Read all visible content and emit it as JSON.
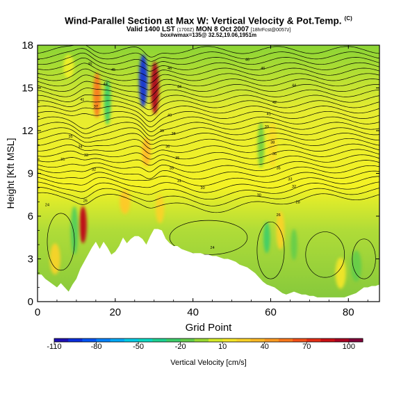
{
  "header": {
    "title": "Wind-Parallel Section at Max W: Vertical Velocity & Pot.Temp.",
    "title_mark": "(C)",
    "valid_main": "Valid 1400 LST",
    "valid_small1": "(1700Z)",
    "valid_mid": "MON 8 Oct 2007",
    "valid_small2": "[18hrFcst@0057z]",
    "subtitle2": "box#wmax=135@ 32.52,19.06,1951m"
  },
  "chart_data": {
    "type": "heatmap",
    "title": "Wind-Parallel Section at Max W: Vertical Velocity & Pot.Temp.",
    "xlabel": "Grid Point",
    "ylabel": "Height [Kft MSL]",
    "xlim": [
      0,
      88
    ],
    "ylim": [
      0,
      18
    ],
    "xticks": [
      0,
      20,
      40,
      60,
      80
    ],
    "yticks": [
      0,
      3,
      6,
      9,
      12,
      15,
      18
    ],
    "colorbar": {
      "label": "Vertical Velocity [cm/s]",
      "ticks": [
        -110,
        -80,
        -50,
        -20,
        10,
        40,
        70,
        100
      ],
      "range": [
        -110,
        110
      ]
    },
    "terrain": [
      [
        0,
        1.9
      ],
      [
        1,
        1.9
      ],
      [
        2,
        1.6
      ],
      [
        3,
        1.4
      ],
      [
        4,
        1.2
      ],
      [
        5,
        1.0
      ],
      [
        6,
        1.3
      ],
      [
        7,
        1.0
      ],
      [
        8,
        0.7
      ],
      [
        9,
        1.2
      ],
      [
        10,
        1.6
      ],
      [
        11,
        2.3
      ],
      [
        12,
        2.8
      ],
      [
        13,
        3.3
      ],
      [
        14,
        3.8
      ],
      [
        15,
        4.2
      ],
      [
        16,
        3.7
      ],
      [
        17,
        4.2
      ],
      [
        18,
        3.8
      ],
      [
        19,
        3.3
      ],
      [
        20,
        3.5
      ],
      [
        21,
        3.9
      ],
      [
        22,
        4.5
      ],
      [
        23,
        4.1
      ],
      [
        24,
        4.4
      ],
      [
        25,
        4.6
      ],
      [
        26,
        4.6
      ],
      [
        27,
        4.4
      ],
      [
        28,
        4.0
      ],
      [
        29,
        4.6
      ],
      [
        30,
        5.1
      ],
      [
        31,
        5.1
      ],
      [
        32,
        5.0
      ],
      [
        33,
        4.4
      ],
      [
        34,
        4.1
      ],
      [
        35,
        3.9
      ],
      [
        36,
        3.9
      ],
      [
        37,
        3.7
      ],
      [
        38,
        3.6
      ],
      [
        39,
        3.5
      ],
      [
        40,
        3.4
      ],
      [
        41,
        3.4
      ],
      [
        42,
        3.4
      ],
      [
        43,
        3.3
      ],
      [
        44,
        3.3
      ],
      [
        45,
        3.2
      ],
      [
        46,
        3.2
      ],
      [
        47,
        3.1
      ],
      [
        48,
        3.0
      ],
      [
        49,
        3.0
      ],
      [
        50,
        2.9
      ],
      [
        51,
        2.8
      ],
      [
        52,
        2.6
      ],
      [
        53,
        2.5
      ],
      [
        54,
        2.4
      ],
      [
        55,
        2.2
      ],
      [
        56,
        2.0
      ],
      [
        57,
        1.7
      ],
      [
        58,
        1.4
      ],
      [
        59,
        1.2
      ],
      [
        60,
        1.1
      ],
      [
        61,
        1.0
      ],
      [
        62,
        0.8
      ],
      [
        63,
        0.6
      ],
      [
        64,
        0.5
      ],
      [
        65,
        0.6
      ],
      [
        66,
        0.7
      ],
      [
        67,
        0.6
      ],
      [
        68,
        0.5
      ],
      [
        69,
        0.5
      ],
      [
        70,
        0.4
      ],
      [
        71,
        0.4
      ],
      [
        72,
        0.3
      ],
      [
        73,
        0.3
      ],
      [
        74,
        0.3
      ],
      [
        75,
        0.3
      ],
      [
        76,
        0.3
      ],
      [
        77,
        0.3
      ],
      [
        78,
        0.3
      ],
      [
        79,
        0.3
      ],
      [
        80,
        0.4
      ],
      [
        81,
        0.5
      ],
      [
        82,
        0.6
      ],
      [
        83,
        0.8
      ],
      [
        84,
        1.0
      ],
      [
        85,
        1.0
      ],
      [
        86,
        1.1
      ],
      [
        87,
        1.1
      ],
      [
        88,
        1.2
      ]
    ],
    "features": [
      {
        "name": "updraft-low-left",
        "x": 11.7,
        "y": 5.4,
        "width": 1.2,
        "height": 2.4,
        "value": 90
      },
      {
        "name": "downdraft-upper",
        "x": 27.2,
        "y": 15.5,
        "width": 1.5,
        "height": 3.5,
        "value": -95
      },
      {
        "name": "updraft-upper-right",
        "x": 30.2,
        "y": 15.0,
        "width": 1.4,
        "height": 3.5,
        "value": 95
      },
      {
        "name": "updraft-upper-left",
        "x": 15.3,
        "y": 14.5,
        "width": 1.2,
        "height": 3.0,
        "value": 55
      },
      {
        "name": "downdraft-upper-left",
        "x": 18.0,
        "y": 14.0,
        "width": 1.0,
        "height": 3.0,
        "value": -25
      },
      {
        "name": "updraft-mid",
        "x": 28.0,
        "y": 10.5,
        "width": 1.5,
        "height": 1.8,
        "value": 35
      },
      {
        "name": "downdraft-left-band",
        "x": 9.5,
        "y": 5.0,
        "width": 1.2,
        "height": 3.2,
        "value": -20
      },
      {
        "name": "updraft-left-low",
        "x": 4.5,
        "y": 3.0,
        "width": 2.0,
        "height": 2.0,
        "value": 25
      },
      {
        "name": "updraft-central-low",
        "x": 22.5,
        "y": 7.0,
        "width": 2.0,
        "height": 1.5,
        "value": 30
      },
      {
        "name": "updraft-central-low2",
        "x": 31.5,
        "y": 6.5,
        "width": 1.5,
        "height": 1.8,
        "value": 25
      },
      {
        "name": "downdraft-right-low",
        "x": 59.0,
        "y": 4.5,
        "width": 1.0,
        "height": 2.0,
        "value": -25
      },
      {
        "name": "downdraft-right-low2",
        "x": 66.0,
        "y": 4.0,
        "width": 1.0,
        "height": 2.0,
        "value": -15
      },
      {
        "name": "updraft-right-low",
        "x": 62.5,
        "y": 5.0,
        "width": 1.5,
        "height": 2.5,
        "value": 25
      },
      {
        "name": "updraft-right-mid",
        "x": 60.5,
        "y": 11.0,
        "width": 1.5,
        "height": 3.0,
        "value": 20
      },
      {
        "name": "downdraft-right-mid",
        "x": 57.5,
        "y": 11.0,
        "width": 1.0,
        "height": 3.0,
        "value": -12
      },
      {
        "name": "downdraft-far-right",
        "x": 82.0,
        "y": 2.5,
        "width": 2.0,
        "height": 2.0,
        "value": -15
      },
      {
        "name": "updraft-far-right",
        "x": 78.0,
        "y": 2.0,
        "width": 2.0,
        "height": 2.0,
        "value": 15
      },
      {
        "name": "updraft-top-left",
        "x": 8.0,
        "y": 16.5,
        "width": 2.0,
        "height": 1.5,
        "value": 10
      }
    ],
    "contour_labels": [
      {
        "x": 13.5,
        "y": 16.7,
        "text": "45"
      },
      {
        "x": 19.5,
        "y": 16.3,
        "text": "45"
      },
      {
        "x": 17.5,
        "y": 15.3,
        "text": "44"
      },
      {
        "x": 11.5,
        "y": 14.2,
        "text": "41"
      },
      {
        "x": 15.0,
        "y": 13.7,
        "text": "37"
      },
      {
        "x": 8.5,
        "y": 11.6,
        "text": "35"
      },
      {
        "x": 11.0,
        "y": 10.9,
        "text": "34"
      },
      {
        "x": 12.5,
        "y": 10.3,
        "text": "33"
      },
      {
        "x": 14.5,
        "y": 9.3,
        "text": "32"
      },
      {
        "x": 6.5,
        "y": 10.0,
        "text": "31"
      },
      {
        "x": 12.3,
        "y": 7.1,
        "text": "26"
      },
      {
        "x": 2.5,
        "y": 6.8,
        "text": "24"
      },
      {
        "x": 34.0,
        "y": 16.4,
        "text": "46"
      },
      {
        "x": 36.5,
        "y": 15.1,
        "text": "44"
      },
      {
        "x": 34.0,
        "y": 13.1,
        "text": "40"
      },
      {
        "x": 32.0,
        "y": 12.0,
        "text": "39"
      },
      {
        "x": 35.0,
        "y": 11.8,
        "text": "38"
      },
      {
        "x": 33.5,
        "y": 10.9,
        "text": "36"
      },
      {
        "x": 36.0,
        "y": 10.1,
        "text": "35"
      },
      {
        "x": 34.5,
        "y": 9.4,
        "text": "33"
      },
      {
        "x": 36.5,
        "y": 8.5,
        "text": "31"
      },
      {
        "x": 42.5,
        "y": 8.0,
        "text": "30"
      },
      {
        "x": 54.0,
        "y": 17.0,
        "text": "46"
      },
      {
        "x": 58.0,
        "y": 16.4,
        "text": "46"
      },
      {
        "x": 66.0,
        "y": 15.2,
        "text": "44"
      },
      {
        "x": 61.0,
        "y": 14.0,
        "text": "42"
      },
      {
        "x": 59.5,
        "y": 13.2,
        "text": "41"
      },
      {
        "x": 59.0,
        "y": 12.3,
        "text": "39"
      },
      {
        "x": 60.5,
        "y": 11.2,
        "text": "38"
      },
      {
        "x": 61.0,
        "y": 10.4,
        "text": "36"
      },
      {
        "x": 62.0,
        "y": 9.4,
        "text": "35"
      },
      {
        "x": 65.0,
        "y": 8.6,
        "text": "33"
      },
      {
        "x": 57.0,
        "y": 7.5,
        "text": "30"
      },
      {
        "x": 66.0,
        "y": 8.1,
        "text": "32"
      },
      {
        "x": 67.0,
        "y": 7.0,
        "text": "28"
      },
      {
        "x": 62.0,
        "y": 6.1,
        "text": "26"
      },
      {
        "x": 45.0,
        "y": 3.8,
        "text": "24"
      }
    ]
  }
}
